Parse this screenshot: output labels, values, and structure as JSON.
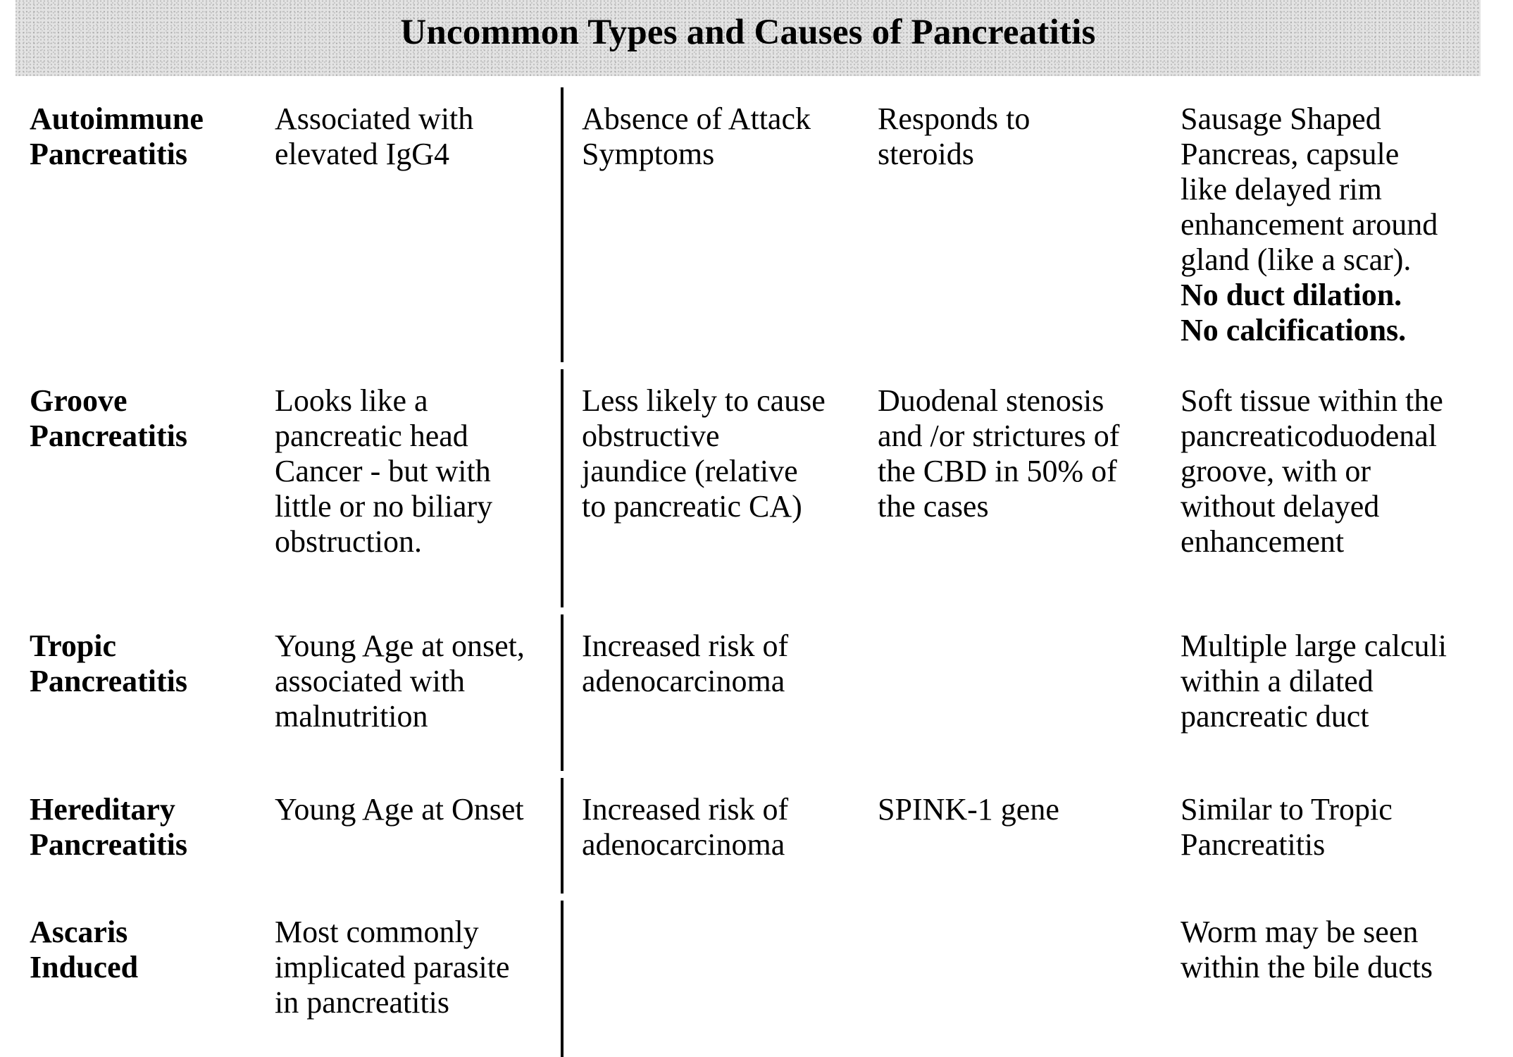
{
  "title": "Uncommon Types and Causes of Pancreatitis",
  "rows": [
    {
      "label": [
        "Autoimmune",
        "Pancreatitis"
      ],
      "c1": [
        "Associated with",
        "elevated IgG4"
      ],
      "c2": [
        "Absence of Attack",
        "Symptoms"
      ],
      "c3": [
        "Responds to",
        "steroids"
      ],
      "c4": [
        "Sausage Shaped",
        "Pancreas, capsule",
        "like delayed rim",
        "enhancement around",
        "gland (like a scar)."
      ],
      "c4_bold": [
        "No duct dilation.",
        "No calcifications."
      ]
    },
    {
      "label": [
        "Groove",
        "Pancreatitis"
      ],
      "c1": [
        "Looks like a",
        "pancreatic head",
        "Cancer - but with",
        "little or no biliary",
        "obstruction."
      ],
      "c2": [
        "Less likely to cause",
        "obstructive",
        "jaundice (relative",
        "to pancreatic CA)"
      ],
      "c3": [
        "Duodenal stenosis",
        "and /or strictures of",
        "the CBD in 50% of",
        "the cases"
      ],
      "c4": [
        "Soft tissue within the",
        "pancreaticoduodenal",
        "groove, with or",
        "without delayed",
        "enhancement"
      ]
    },
    {
      "label": [
        "Tropic",
        "Pancreatitis"
      ],
      "c1": [
        "Young Age at onset,",
        "associated with",
        "malnutrition"
      ],
      "c2": [
        "Increased risk of",
        "adenocarcinoma"
      ],
      "c3": [],
      "c4": [
        "Multiple large calculi",
        "within a dilated",
        "pancreatic duct"
      ]
    },
    {
      "label": [
        "Hereditary",
        "Pancreatitis"
      ],
      "c1": [
        "Young Age at Onset"
      ],
      "c2": [
        "Increased risk of",
        "adenocarcinoma"
      ],
      "c3": [
        "SPINK-1 gene"
      ],
      "c4": [
        "Similar to Tropic",
        "Pancreatitis"
      ]
    },
    {
      "label": [
        "Ascaris",
        "Induced"
      ],
      "c1": [
        "Most commonly",
        "implicated parasite",
        "in pancreatitis"
      ],
      "c2": [],
      "c3": [],
      "c4": [
        "Worm may be seen",
        "within the bile ducts"
      ]
    }
  ]
}
